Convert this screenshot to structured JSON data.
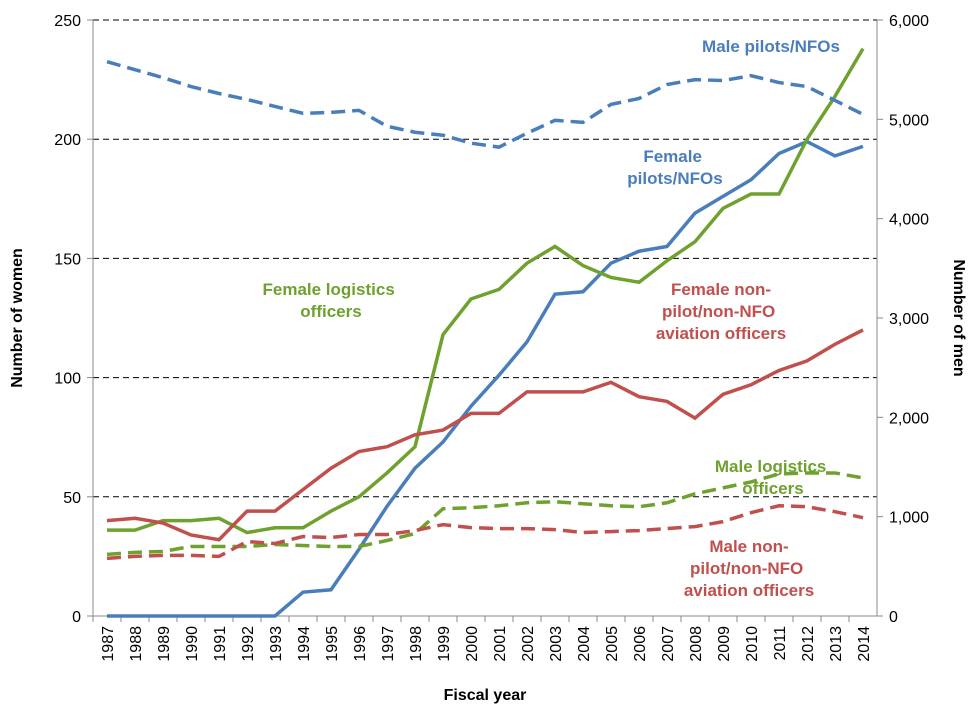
{
  "chart_data": {
    "type": "line",
    "x_label": "Fiscal year",
    "y_label": "Number of women",
    "y2_label": "Number of men",
    "categories": [
      "1987",
      "1988",
      "1989",
      "1990",
      "1991",
      "1992",
      "1993",
      "1994",
      "1995",
      "1996",
      "1997",
      "1998",
      "1999",
      "2000",
      "2001",
      "2002",
      "2003",
      "2004",
      "2005",
      "2006",
      "2007",
      "2008",
      "2009",
      "2010",
      "2011",
      "2012",
      "2013",
      "2014"
    ],
    "ylim": [
      0,
      250
    ],
    "yticks": [
      0,
      50,
      100,
      150,
      200,
      250
    ],
    "y2lim": [
      0,
      6000
    ],
    "y2ticks": [
      0,
      {
        "value": 1000,
        "label": "1,000"
      },
      {
        "value": 2000,
        "label": "2,000"
      },
      {
        "value": 3000,
        "label": "3,000"
      },
      {
        "value": 4000,
        "label": "4,000"
      },
      {
        "value": 5000,
        "label": "5,000"
      },
      {
        "value": 6000,
        "label": "6,000"
      }
    ],
    "grid": true,
    "series": [
      {
        "name": "Female pilots/NFOs",
        "color": "#4a7ebb",
        "dashed": false,
        "values": [
          0,
          0,
          0,
          0,
          0,
          0,
          0,
          10,
          11,
          28,
          46,
          62,
          73,
          88,
          101,
          115,
          135,
          136,
          148,
          153,
          155,
          169,
          176,
          183,
          194,
          199,
          193,
          197
        ]
      },
      {
        "name": "Female logistics officers",
        "color": "#6ea12e",
        "dashed": false,
        "values": [
          36,
          36,
          40,
          40,
          41,
          35,
          37,
          37,
          44,
          50,
          60,
          71,
          118,
          133,
          137,
          148,
          155,
          147,
          142,
          140,
          149,
          157,
          171,
          177,
          177,
          200,
          218,
          238
        ]
      },
      {
        "name": "Female non-pilot/non-NFO aviation officers",
        "color": "#c0504d",
        "dashed": false,
        "values": [
          40,
          41,
          39,
          34,
          32,
          44,
          44,
          53,
          62,
          69,
          71,
          76,
          78,
          85,
          85,
          94,
          94,
          94,
          98,
          92,
          90,
          83,
          93,
          97,
          103,
          107,
          114,
          120
        ]
      },
      {
        "name": "Male pilots/NFOs",
        "color": "#4a7ebb",
        "dashed": true,
        "axis": "y2",
        "values": [
          5580,
          5500,
          5420,
          5330,
          5260,
          5200,
          5130,
          5060,
          5070,
          5090,
          4930,
          4870,
          4840,
          4760,
          4720,
          4860,
          4990,
          4970,
          5150,
          5210,
          5350,
          5400,
          5390,
          5440,
          5370,
          5330,
          5190,
          5050
        ]
      },
      {
        "name": "Male logistics officers",
        "color": "#6ea12e",
        "dashed": true,
        "axis": "y2",
        "values": [
          620,
          640,
          650,
          700,
          700,
          700,
          720,
          710,
          700,
          700,
          760,
          830,
          1080,
          1090,
          1110,
          1140,
          1150,
          1130,
          1110,
          1100,
          1140,
          1230,
          1290,
          1350,
          1430,
          1440,
          1440,
          1390
        ]
      },
      {
        "name": "Male non-pilot/non-NFO aviation officers",
        "color": "#c0504d",
        "dashed": true,
        "axis": "y2",
        "values": [
          580,
          600,
          610,
          610,
          600,
          750,
          730,
          800,
          790,
          820,
          820,
          860,
          920,
          890,
          880,
          880,
          870,
          840,
          850,
          860,
          880,
          900,
          950,
          1040,
          1110,
          1100,
          1050,
          990
        ]
      }
    ]
  }
}
